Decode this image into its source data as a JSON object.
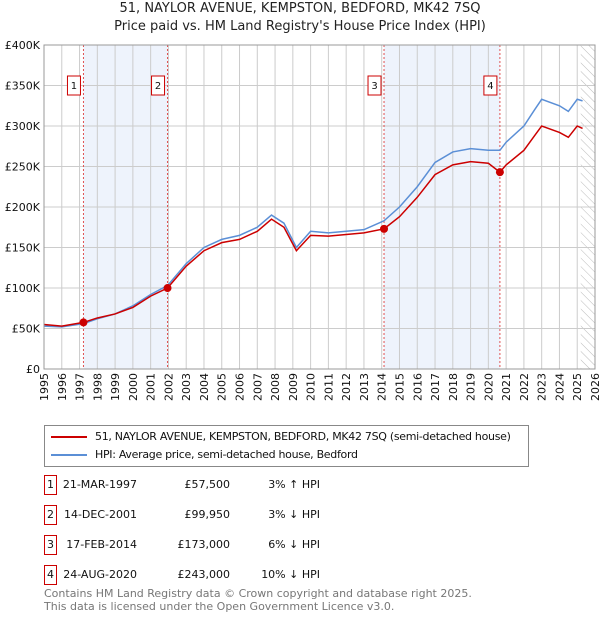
{
  "chart_data": {
    "type": "line",
    "title": "51, NAYLOR AVENUE, KEMPSTON, BEDFORD, MK42 7SQ",
    "subtitle": "Price paid vs. HM Land Registry's House Price Index (HPI)",
    "xlim": [
      1995,
      2026
    ],
    "ylim": [
      0,
      400000
    ],
    "y_ticks": [
      0,
      50000,
      100000,
      150000,
      200000,
      250000,
      300000,
      350000,
      400000
    ],
    "y_tick_labels": [
      "£0",
      "£50K",
      "£100K",
      "£150K",
      "£200K",
      "£250K",
      "£300K",
      "£350K",
      "£400K"
    ],
    "x_ticks": [
      1995,
      1996,
      1997,
      1998,
      1999,
      2000,
      2001,
      2002,
      2003,
      2004,
      2005,
      2006,
      2007,
      2008,
      2009,
      2010,
      2011,
      2012,
      2013,
      2014,
      2015,
      2016,
      2017,
      2018,
      2019,
      2020,
      2021,
      2022,
      2023,
      2024,
      2025,
      2026
    ],
    "grid": true,
    "forecast_hatch_start": 2025.2,
    "shaded_ranges": [
      [
        1997.22,
        2001.95
      ],
      [
        2014.13,
        2020.65
      ]
    ],
    "series": [
      {
        "name": "51, NAYLOR AVENUE, KEMPSTON, BEDFORD, MK42 7SQ (semi-detached house)",
        "color": "#cc0000",
        "x": [
          1995,
          1996,
          1997.22,
          1998,
          1999,
          2000,
          2001,
          2001.95,
          2003,
          2004,
          2005,
          2006,
          2007,
          2007.8,
          2008.5,
          2009.2,
          2010,
          2011,
          2012,
          2013,
          2014.13,
          2015,
          2016,
          2017,
          2018,
          2019,
          2020,
          2020.65,
          2021,
          2022,
          2022.6,
          2023,
          2024,
          2024.5,
          2025,
          2025.3
        ],
        "y": [
          55000,
          53000,
          57500,
          63000,
          68000,
          76000,
          90000,
          99950,
          127000,
          146000,
          156000,
          160000,
          170000,
          185000,
          175000,
          146000,
          165000,
          164000,
          166000,
          168000,
          173000,
          188000,
          212000,
          240000,
          252000,
          256000,
          254000,
          243000,
          252000,
          270000,
          288000,
          300000,
          292000,
          286000,
          300000,
          297000
        ]
      },
      {
        "name": "HPI: Average price, semi-detached house, Bedford",
        "color": "#5b8fd6",
        "x": [
          1995,
          1996,
          1997.22,
          1998,
          1999,
          2000,
          2001,
          2001.95,
          2003,
          2004,
          2005,
          2006,
          2007,
          2007.8,
          2008.5,
          2009.2,
          2010,
          2011,
          2012,
          2013,
          2014.13,
          2015,
          2016,
          2017,
          2018,
          2019,
          2020,
          2020.65,
          2021,
          2022,
          2022.6,
          2023,
          2024,
          2024.5,
          2025,
          2025.3
        ],
        "y": [
          53000,
          52000,
          56000,
          62000,
          68000,
          78000,
          92000,
          103000,
          130000,
          150000,
          160000,
          165000,
          175000,
          190000,
          180000,
          150000,
          170000,
          168000,
          170000,
          172000,
          183000,
          200000,
          225000,
          255000,
          268000,
          272000,
          270000,
          270000,
          280000,
          300000,
          320000,
          333000,
          325000,
          318000,
          333000,
          331000
        ]
      }
    ],
    "sales": [
      {
        "label": "1",
        "x": 1997.22,
        "y": 57500
      },
      {
        "label": "2",
        "x": 2001.95,
        "y": 99950
      },
      {
        "label": "3",
        "x": 2014.13,
        "y": 173000
      },
      {
        "label": "4",
        "x": 2020.65,
        "y": 243000
      }
    ]
  },
  "legend": {
    "red": "51, NAYLOR AVENUE, KEMPSTON, BEDFORD, MK42 7SQ (semi-detached house)",
    "blue": "HPI: Average price, semi-detached house, Bedford"
  },
  "transactions": [
    {
      "num": "1",
      "date": "21-MAR-1997",
      "price": "£57,500",
      "hpi": "3% ↑ HPI"
    },
    {
      "num": "2",
      "date": "14-DEC-2001",
      "price": "£99,950",
      "hpi": "3% ↓ HPI"
    },
    {
      "num": "3",
      "date": "17-FEB-2014",
      "price": "£173,000",
      "hpi": "6% ↓ HPI"
    },
    {
      "num": "4",
      "date": "24-AUG-2020",
      "price": "£243,000",
      "hpi": "10% ↓ HPI"
    }
  ],
  "footer": {
    "line1": "Contains HM Land Registry data © Crown copyright and database right 2025.",
    "line2": "This data is licensed under the Open Government Licence v3.0."
  }
}
